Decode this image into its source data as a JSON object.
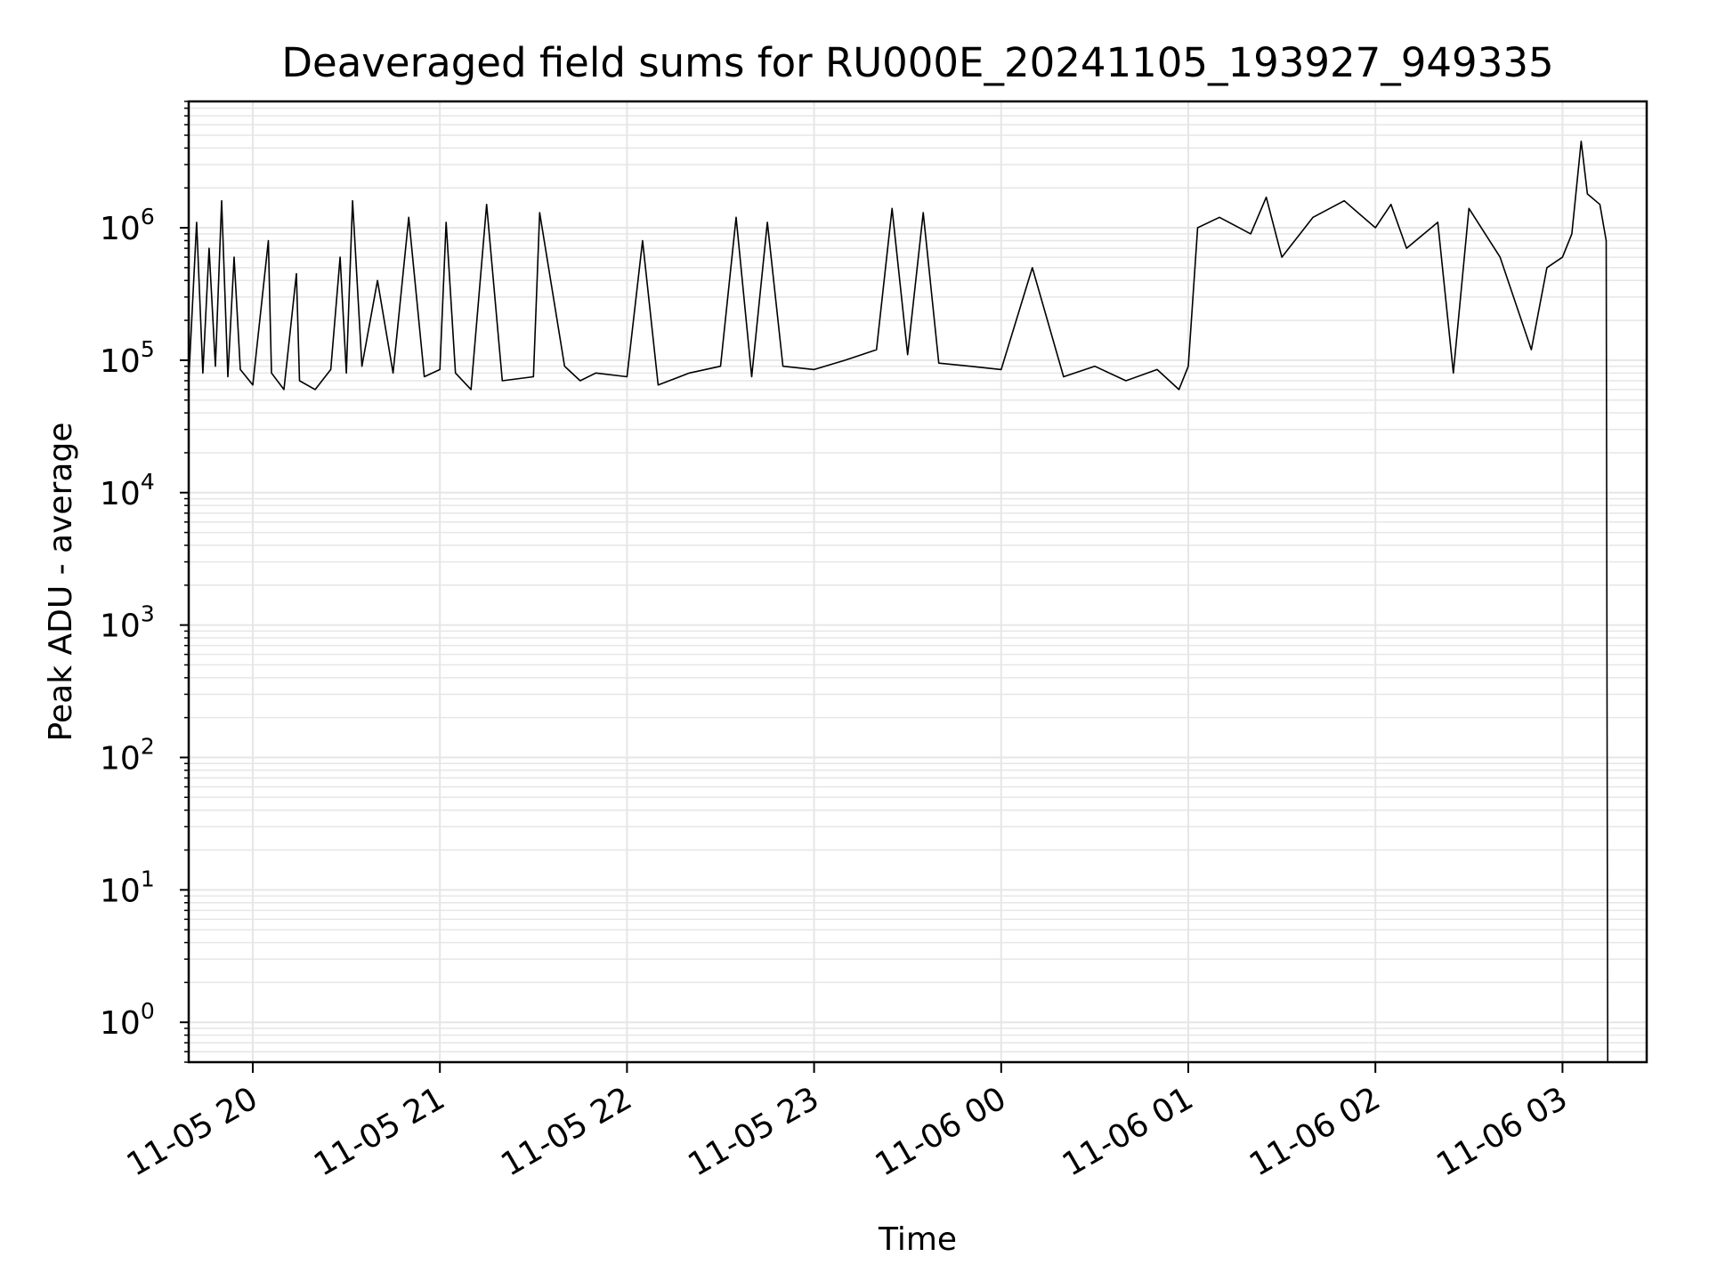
{
  "chart_data": {
    "type": "line",
    "title": "Deaveraged field sums for RU000E_20241105_193927_949335",
    "xlabel": "Time",
    "ylabel": "Peak ADU - average",
    "y_scale": "log",
    "ylim": [
      0.5,
      9000000
    ],
    "xlim": [
      "2024-11-05T19:39:27",
      "2024-11-06T03:27:00"
    ],
    "grid": "major and minor",
    "legend": "none",
    "line_color": "#000000",
    "grid_color": "#e6e6e6",
    "x_ticks": [
      {
        "t": "2024-11-05T20:00:00",
        "label": "11-05 20"
      },
      {
        "t": "2024-11-05T21:00:00",
        "label": "11-05 21"
      },
      {
        "t": "2024-11-05T22:00:00",
        "label": "11-05 22"
      },
      {
        "t": "2024-11-05T23:00:00",
        "label": "11-05 23"
      },
      {
        "t": "2024-11-06T00:00:00",
        "label": "11-06 00"
      },
      {
        "t": "2024-11-06T01:00:00",
        "label": "11-06 01"
      },
      {
        "t": "2024-11-06T02:00:00",
        "label": "11-06 02"
      },
      {
        "t": "2024-11-06T03:00:00",
        "label": "11-06 03"
      }
    ],
    "y_ticks": [
      {
        "value": 1,
        "base": "10",
        "exp": "0"
      },
      {
        "value": 10,
        "base": "10",
        "exp": "1"
      },
      {
        "value": 100,
        "base": "10",
        "exp": "2"
      },
      {
        "value": 1000,
        "base": "10",
        "exp": "3"
      },
      {
        "value": 10000,
        "base": "10",
        "exp": "4"
      },
      {
        "value": 100000,
        "base": "10",
        "exp": "5"
      },
      {
        "value": 1000000,
        "base": "10",
        "exp": "6"
      }
    ],
    "series": [
      {
        "x": [
          "2024-11-05T19:39:27",
          "2024-11-05T19:42:00",
          "2024-11-05T19:44:00",
          "2024-11-05T19:46:00",
          "2024-11-05T19:48:00",
          "2024-11-05T19:50:00",
          "2024-11-05T19:52:00",
          "2024-11-05T19:54:00",
          "2024-11-05T19:56:00",
          "2024-11-05T20:00:00",
          "2024-11-05T20:05:00",
          "2024-11-05T20:06:00",
          "2024-11-05T20:10:00",
          "2024-11-05T20:14:00",
          "2024-11-05T20:15:00",
          "2024-11-05T20:20:00",
          "2024-11-05T20:25:00",
          "2024-11-05T20:28:00",
          "2024-11-05T20:30:00",
          "2024-11-05T20:32:00",
          "2024-11-05T20:35:00",
          "2024-11-05T20:40:00",
          "2024-11-05T20:45:00",
          "2024-11-05T20:50:00",
          "2024-11-05T20:55:00",
          "2024-11-05T21:00:00",
          "2024-11-05T21:02:00",
          "2024-11-05T21:05:00",
          "2024-11-05T21:10:00",
          "2024-11-05T21:15:00",
          "2024-11-05T21:20:00",
          "2024-11-05T21:30:00",
          "2024-11-05T21:32:00",
          "2024-11-05T21:40:00",
          "2024-11-05T21:45:00",
          "2024-11-05T21:50:00",
          "2024-11-05T22:00:00",
          "2024-11-05T22:05:00",
          "2024-11-05T22:10:00",
          "2024-11-05T22:20:00",
          "2024-11-05T22:30:00",
          "2024-11-05T22:35:00",
          "2024-11-05T22:40:00",
          "2024-11-05T22:45:00",
          "2024-11-05T22:50:00",
          "2024-11-05T23:00:00",
          "2024-11-05T23:10:00",
          "2024-11-05T23:20:00",
          "2024-11-05T23:25:00",
          "2024-11-05T23:30:00",
          "2024-11-05T23:35:00",
          "2024-11-05T23:40:00",
          "2024-11-05T23:50:00",
          "2024-11-06T00:00:00",
          "2024-11-06T00:10:00",
          "2024-11-06T00:20:00",
          "2024-11-06T00:30:00",
          "2024-11-06T00:40:00",
          "2024-11-06T00:50:00",
          "2024-11-06T00:57:00",
          "2024-11-06T01:00:00",
          "2024-11-06T01:03:00",
          "2024-11-06T01:10:00",
          "2024-11-06T01:20:00",
          "2024-11-06T01:25:00",
          "2024-11-06T01:30:00",
          "2024-11-06T01:40:00",
          "2024-11-06T01:50:00",
          "2024-11-06T02:00:00",
          "2024-11-06T02:05:00",
          "2024-11-06T02:10:00",
          "2024-11-06T02:20:00",
          "2024-11-06T02:25:00",
          "2024-11-06T02:30:00",
          "2024-11-06T02:40:00",
          "2024-11-06T02:50:00",
          "2024-11-06T02:55:00",
          "2024-11-06T03:00:00",
          "2024-11-06T03:03:00",
          "2024-11-06T03:06:00",
          "2024-11-06T03:08:00",
          "2024-11-06T03:12:00",
          "2024-11-06T03:14:00",
          "2024-11-06T03:14:30"
        ],
        "y": [
          70000,
          1100000,
          80000,
          700000,
          90000,
          1600000,
          75000,
          600000,
          85000,
          65000,
          800000,
          80000,
          60000,
          450000,
          70000,
          60000,
          85000,
          600000,
          80000,
          1600000,
          90000,
          400000,
          80000,
          1200000,
          75000,
          85000,
          1100000,
          80000,
          60000,
          1500000,
          70000,
          75000,
          1300000,
          90000,
          70000,
          80000,
          75000,
          800000,
          65000,
          80000,
          90000,
          1200000,
          75000,
          1100000,
          90000,
          85000,
          100000,
          120000,
          1400000,
          110000,
          1300000,
          95000,
          90000,
          85000,
          500000,
          75000,
          90000,
          70000,
          85000,
          60000,
          90000,
          1000000,
          1200000,
          900000,
          1700000,
          600000,
          1200000,
          1600000,
          1000000,
          1500000,
          700000,
          1100000,
          80000,
          1400000,
          600000,
          120000,
          500000,
          600000,
          900000,
          4500000,
          1800000,
          1500000,
          800000,
          0.5
        ]
      }
    ]
  }
}
